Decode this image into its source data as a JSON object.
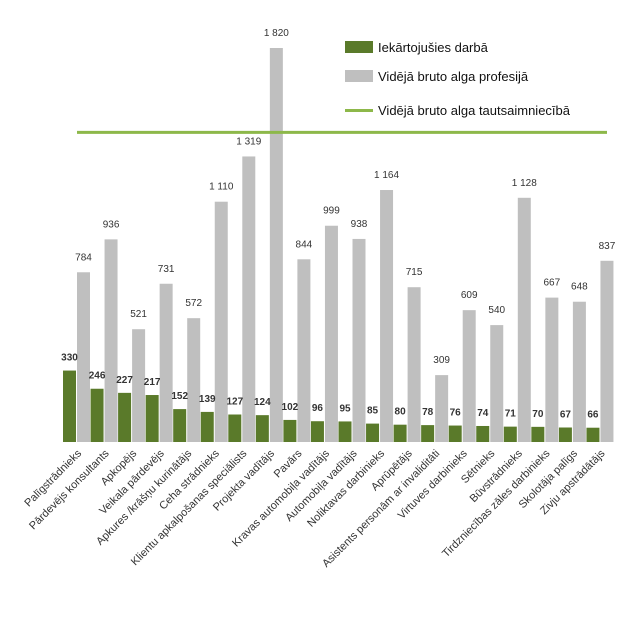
{
  "chart_data": {
    "type": "bar",
    "categories": [
      "Palīgstrādnieks",
      "Pārdevējs konsultants",
      "Apkopējs",
      "Veikala pārdevējs",
      "Apkures /krāšņu kurinātājs",
      "Ceha strādnieks",
      "Klientu apkalpošanas speciālists",
      "Projekta vadītājs",
      "Pavārs",
      "Kravas automobiļa vadītājs",
      "Automobiļa vadītājs",
      "Noliktavas darbinieks",
      "Aprūpētājs",
      "Asistents personām ar invaliditāti",
      "Virtuves darbinieks",
      "Sētnieks",
      "Būvstrādnieks",
      "Tirdzniecības zāles darbinieks",
      "Skolotāja palīgs",
      "Zivju apstrādātājs"
    ],
    "series": [
      {
        "name": "Iekārtojušies darbā",
        "color": "#5a7a2a",
        "values": [
          330,
          246,
          227,
          217,
          152,
          139,
          127,
          124,
          102,
          96,
          95,
          85,
          80,
          78,
          76,
          74,
          71,
          70,
          67,
          66
        ],
        "labels": [
          "330",
          "246",
          "227",
          "217",
          "152",
          "139",
          "127",
          "124",
          "102",
          "96",
          "95",
          "85",
          "80",
          "78",
          "76",
          "74",
          "71",
          "70",
          "67",
          "66"
        ]
      },
      {
        "name": "Vidējā bruto alga profesijā",
        "color": "#bfbfbf",
        "values": [
          784,
          936,
          521,
          731,
          572,
          1110,
          1319,
          1820,
          844,
          999,
          938,
          1164,
          715,
          309,
          609,
          540,
          1128,
          667,
          648,
          837
        ],
        "labels": [
          "784",
          "936",
          "521",
          "731",
          "572",
          "1 110",
          "1 319",
          "1 820",
          "844",
          "999",
          "938",
          "1 164",
          "715",
          "309",
          "609",
          "540",
          "1 128",
          "667",
          "648",
          "837"
        ]
      }
    ],
    "reference_line": {
      "name": "Vidējā bruto alga tautsaimniecībā",
      "color": "#8db84a",
      "value": 1430
    },
    "ylim": [
      0,
      1900
    ],
    "grid": false,
    "legend_position": "top-right",
    "title": "",
    "xlabel": "",
    "ylabel": ""
  }
}
